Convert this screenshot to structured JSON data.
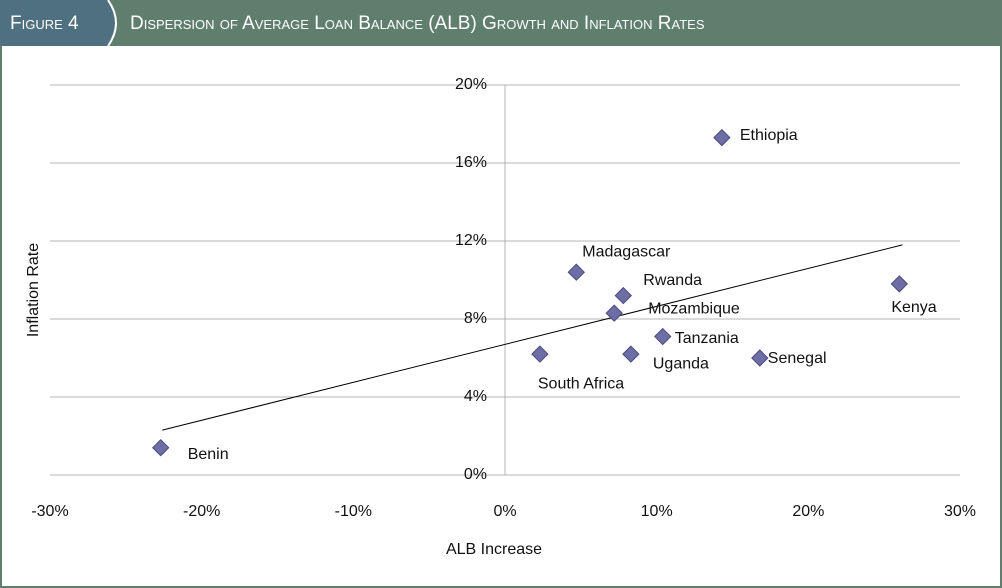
{
  "figure_label": "Figure 4",
  "chart_data": {
    "type": "scatter",
    "title": "Dispersion of Average Loan Balance (ALB) Growth and Inflation Rates",
    "x_label": "ALB Increase",
    "y_label": "Inflation Rate",
    "labels": [
      "Ethiopia",
      "Madagascar",
      "Rwanda",
      "Mozambique",
      "Tanzania",
      "Uganda",
      "South Africa",
      "Senegal",
      "Kenya",
      "Benin"
    ],
    "x": [
      14.3,
      4.7,
      7.8,
      7.2,
      10.4,
      8.3,
      2.3,
      16.8,
      26.0,
      -22.7
    ],
    "y": [
      17.3,
      10.4,
      9.2,
      8.3,
      7.1,
      6.2,
      6.2,
      6.0,
      9.8,
      1.4
    ],
    "color": "#6e6ea6",
    "trendline": {
      "x": [
        -22.6,
        26.2
      ],
      "y": [
        2.3,
        11.8
      ]
    },
    "xlim": [
      -30,
      30
    ],
    "xticks": [
      {
        "value": -30,
        "label": "-30%"
      },
      {
        "value": -20,
        "label": "-20%"
      },
      {
        "value": -10,
        "label": "-10%"
      },
      {
        "value": 0,
        "label": "0%"
      },
      {
        "value": 10,
        "label": "10%"
      },
      {
        "value": 20,
        "label": "20%"
      },
      {
        "value": 30,
        "label": "30%"
      }
    ],
    "ylim": [
      0,
      20
    ],
    "yticks": [
      {
        "value": 0,
        "label": "0%"
      },
      {
        "value": 4,
        "label": "4%"
      },
      {
        "value": 8,
        "label": "8%"
      },
      {
        "value": 12,
        "label": "12%"
      },
      {
        "value": 16,
        "label": "16%"
      },
      {
        "value": 20,
        "label": "20%"
      }
    ],
    "grid": true
  }
}
